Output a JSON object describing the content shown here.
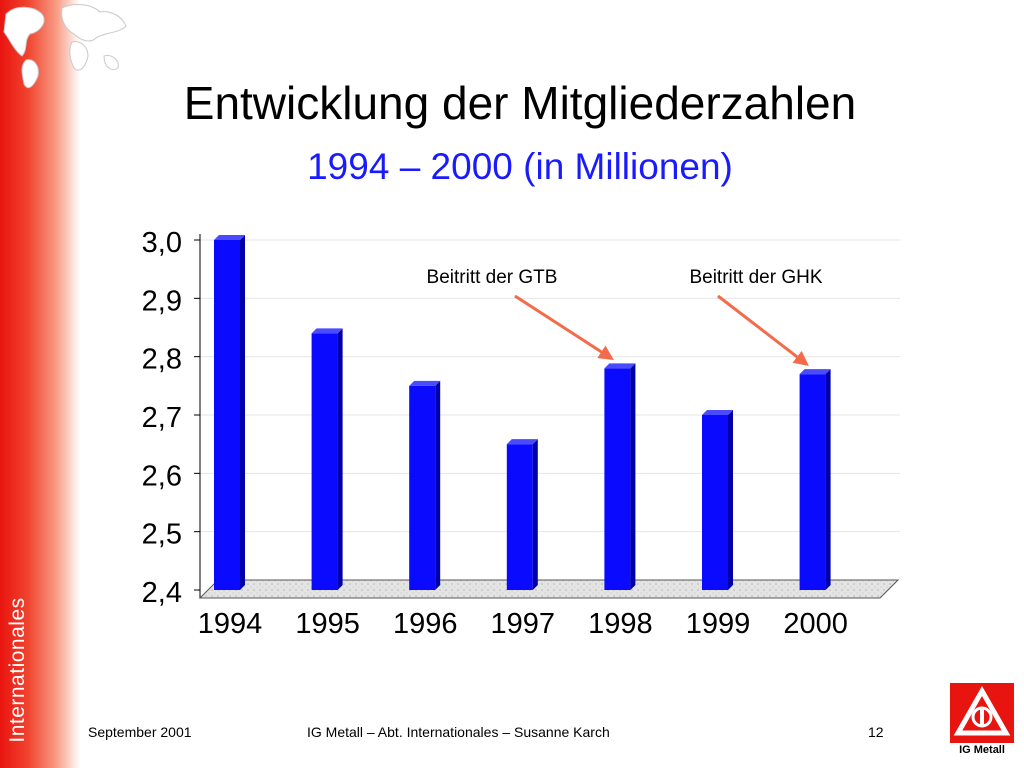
{
  "slide": {
    "title": "Entwicklung der Mitgliederzahlen",
    "subtitle": "1994 – 2000 (in Millionen)",
    "side_label": "Internationales",
    "footer_left": "September 2001",
    "footer_center": "IG Metall – Abt. Internationales – Susanne Karch",
    "page_number": "12",
    "logo_text": "IG Metall"
  },
  "colors": {
    "bar": "#0a0aff",
    "arrow": "#f26b4a",
    "subtitle": "#1a1aff",
    "brand_red": "#e8140f"
  },
  "chart_data": {
    "type": "bar",
    "categories": [
      "1994",
      "1995",
      "1996",
      "1997",
      "1998",
      "1999",
      "2000"
    ],
    "values": [
      3.0,
      2.84,
      2.75,
      2.65,
      2.78,
      2.7,
      2.77
    ],
    "ylim": [
      2.4,
      3.0
    ],
    "yticks": [
      "2,4",
      "2,5",
      "2,6",
      "2,7",
      "2,8",
      "2,9",
      "3,0"
    ],
    "grid": true,
    "annotations": [
      {
        "text": "Beitritt der GTB",
        "category": "1998"
      },
      {
        "text": "Beitritt der GHK",
        "category": "2000"
      }
    ]
  }
}
